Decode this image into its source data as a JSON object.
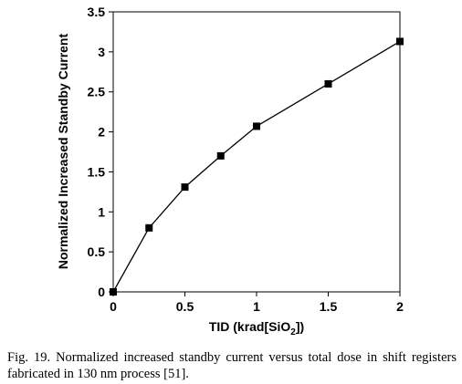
{
  "chart_data": {
    "type": "line",
    "xlabel_main": "TID (krad[SiO",
    "xlabel_sub": "2",
    "xlabel_tail": "])",
    "ylabel": "Normalized Increased Standby Current",
    "xlim": [
      0,
      2
    ],
    "ylim": [
      0,
      3.5
    ],
    "x_ticks": [
      "0",
      "0.5",
      "1",
      "1.5",
      "2"
    ],
    "y_ticks": [
      "0",
      "0.5",
      "1",
      "1.5",
      "2",
      "2.5",
      "3",
      "3.5"
    ],
    "grid": false,
    "marker": "square",
    "x": [
      0,
      0.25,
      0.5,
      0.75,
      1,
      1.5,
      2
    ],
    "y": [
      0,
      0.8,
      1.31,
      1.7,
      2.07,
      2.6,
      3.13
    ]
  },
  "caption": "Fig. 19.   Normalized increased standby current versus total dose in shift registers fabricated in 130 nm process [51]."
}
